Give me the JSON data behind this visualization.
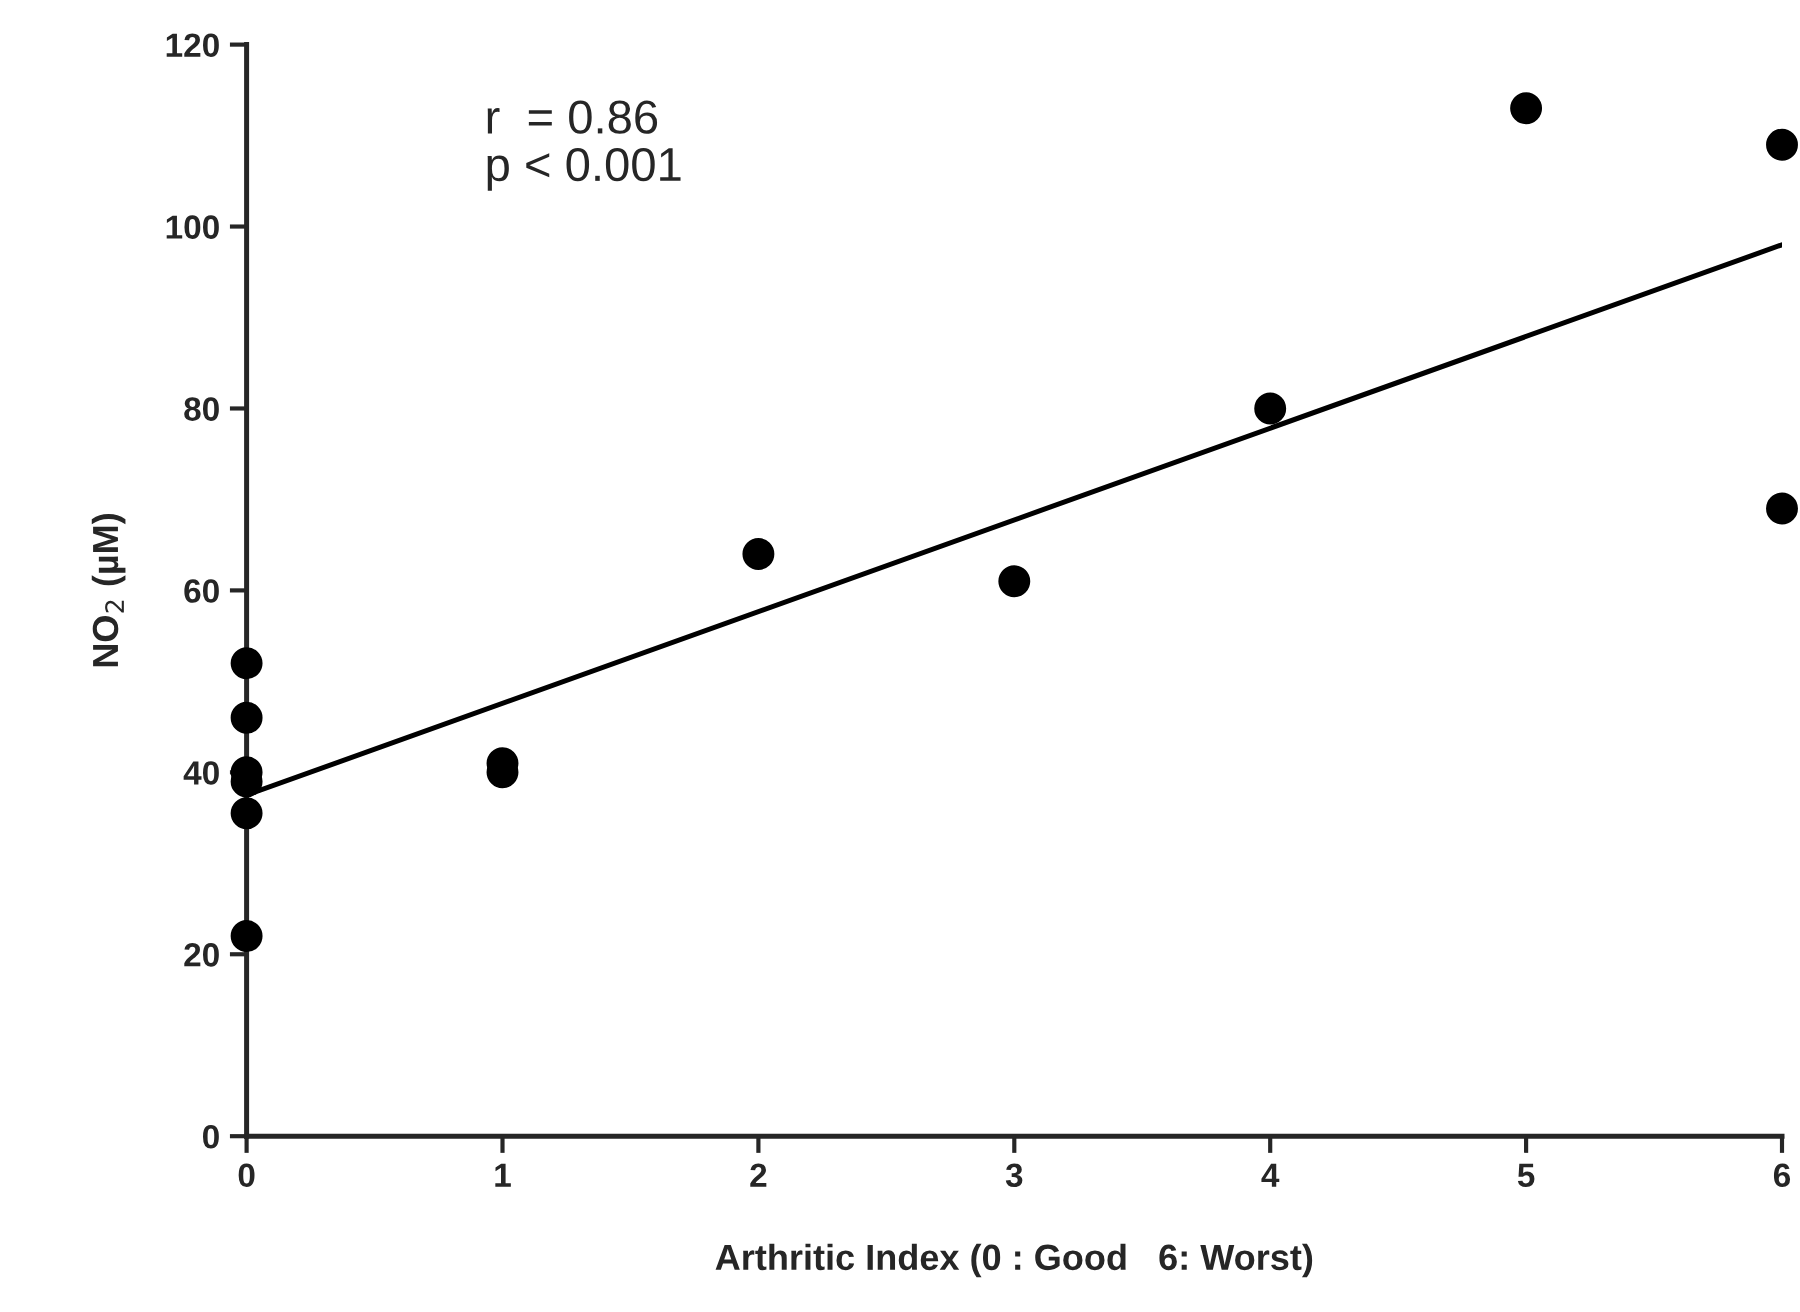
{
  "chart_data": {
    "type": "scatter",
    "xlabel": "Arthritic Index (0 : Good   6: Worst)",
    "ylabel": "NO$_{2}$ (µM)",
    "series": [
      {
        "color": "#000000",
        "marker": "circle",
        "x": [
          0,
          0,
          0,
          0,
          0,
          0,
          1,
          1,
          2,
          3,
          4,
          5,
          6,
          6
        ],
        "values": [
          52,
          46,
          40,
          39,
          35.5,
          22,
          41,
          40,
          64,
          61,
          80,
          113,
          109,
          69
        ]
      },
      {
        "type": "line",
        "marker": "none",
        "color": "#000000",
        "x": [
          0,
          6
        ],
        "values": [
          37.5,
          98
        ]
      }
    ],
    "annotations": [
      "r  = 0.86\np < 0.001"
    ],
    "xlim": [
      0,
      6
    ],
    "xticks": [
      0,
      1,
      2,
      3,
      4,
      5,
      6
    ],
    "ylim": [
      0,
      120
    ],
    "yticks": [
      0,
      20,
      40,
      60,
      80,
      100,
      120
    ],
    "grid": false,
    "legend": false
  }
}
